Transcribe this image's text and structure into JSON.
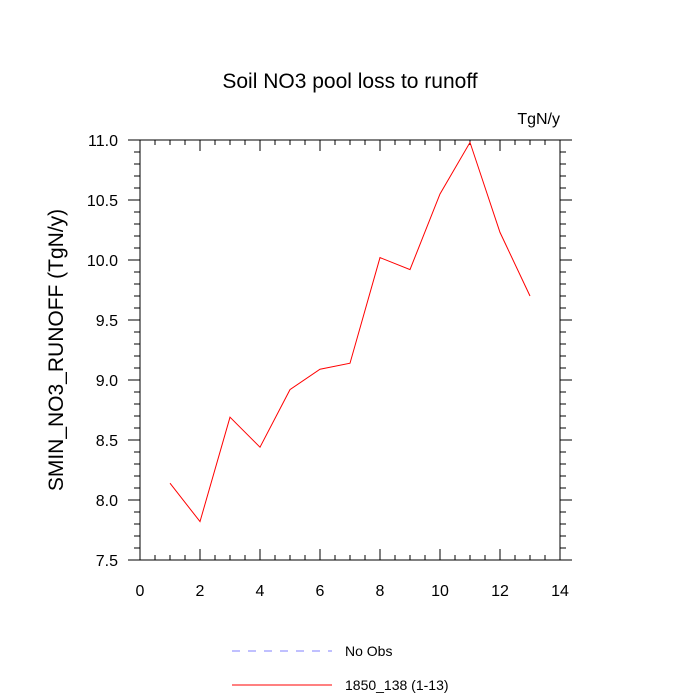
{
  "chart_data": {
    "type": "line",
    "title": "Soil NO3 pool loss to runoff",
    "units_label": "TgN/y",
    "ylabel": "SMIN_NO3_RUNOFF  (TgN/y)",
    "xlabel": "",
    "xlim": [
      0,
      14
    ],
    "ylim": [
      7.5,
      11.0
    ],
    "x_ticks": [
      0,
      2,
      4,
      6,
      8,
      10,
      12,
      14
    ],
    "y_ticks": [
      7.5,
      8.0,
      8.5,
      9.0,
      9.5,
      10.0,
      10.5,
      11.0
    ],
    "y_tick_labels": [
      "7.5",
      "8.0",
      "8.5",
      "9.0",
      "9.5",
      "10.0",
      "10.5",
      "11.0"
    ],
    "grid": false,
    "legend_position": "bottom",
    "series": [
      {
        "name": "No Obs",
        "color": "#8080ff",
        "dash": true,
        "x": [],
        "values": []
      },
      {
        "name": "1850_138 (1-13)",
        "color": "#ff0000",
        "dash": false,
        "x": [
          1,
          2,
          3,
          4,
          5,
          6,
          7,
          8,
          9,
          10,
          11,
          12,
          13
        ],
        "values": [
          8.14,
          7.82,
          8.69,
          8.44,
          8.92,
          9.09,
          9.14,
          10.02,
          9.92,
          10.55,
          10.98,
          10.23,
          9.7
        ]
      }
    ]
  }
}
